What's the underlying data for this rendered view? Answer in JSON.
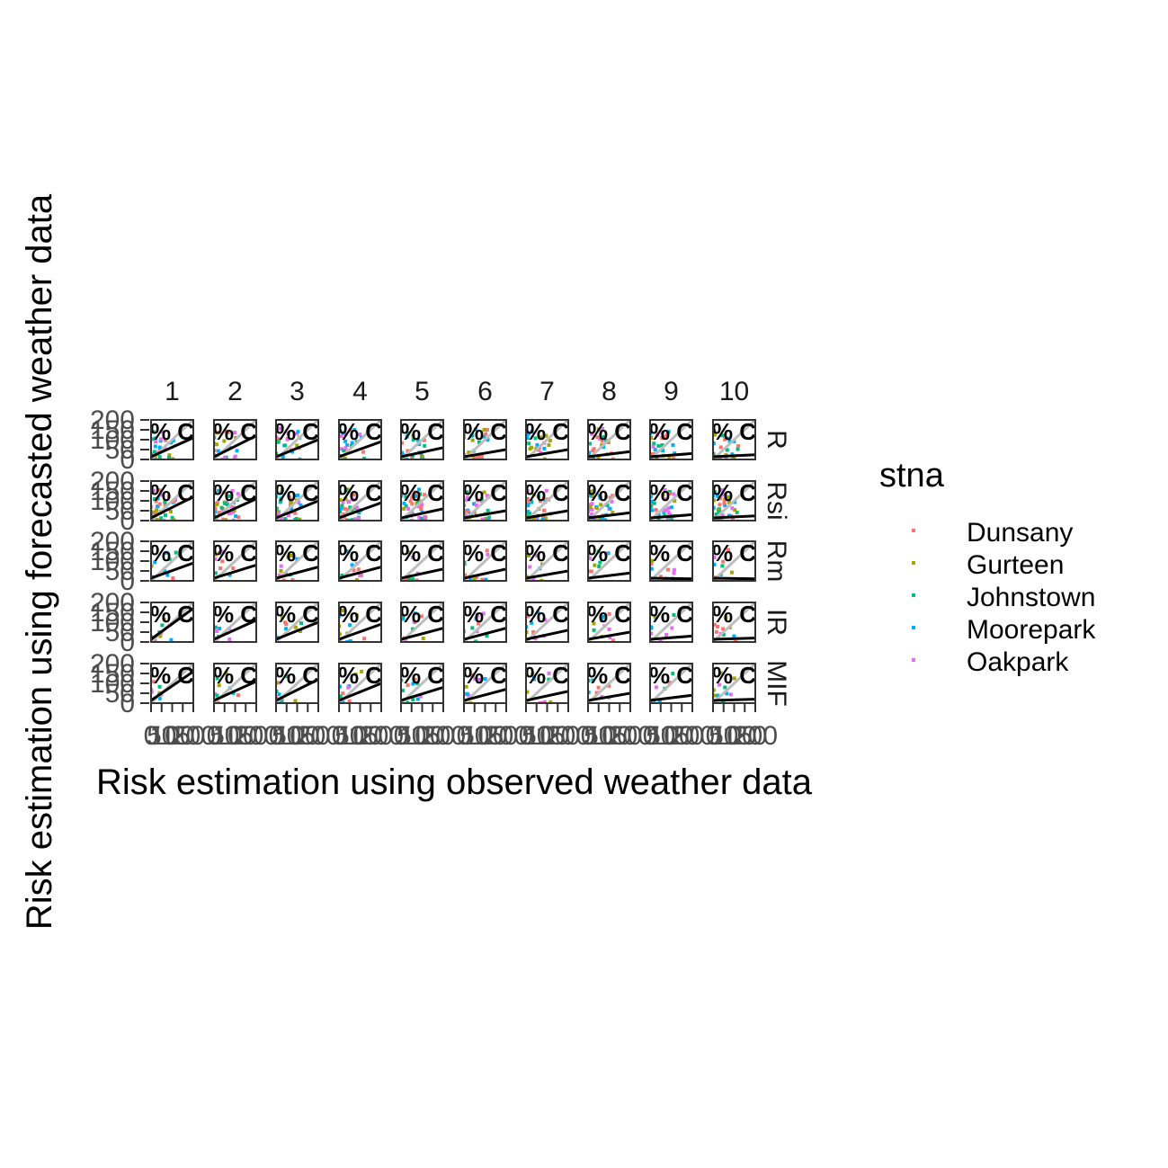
{
  "chart_data": {
    "type": "scatter",
    "xlabel": "Risk estimation using observed weather data",
    "ylabel": "Risk estimation using forecasted weather data",
    "facet_columns": [
      "1",
      "2",
      "3",
      "4",
      "5",
      "6",
      "7",
      "8",
      "9",
      "10"
    ],
    "facet_rows": [
      "R",
      "Rsi",
      "Rm",
      "IR",
      "MIF"
    ],
    "y_ticks": [
      "0",
      "50",
      "100",
      "150",
      "200"
    ],
    "x_ticks": [
      "0",
      "50",
      "100",
      "150",
      "200"
    ],
    "xlim": [
      0,
      200
    ],
    "ylim": [
      0,
      200
    ],
    "panel_label": "% C",
    "identity_line": true,
    "regression_line": true,
    "legend": {
      "title": "stna",
      "position": "right",
      "entries": [
        {
          "name": "Dunsany",
          "color": "#F8766D"
        },
        {
          "name": "Gurteen",
          "color": "#A3A500"
        },
        {
          "name": "Johnstown",
          "color": "#00BF7D"
        },
        {
          "name": "Moorepark",
          "color": "#00B0F6"
        },
        {
          "name": "Oakpark",
          "color": "#E76BF3"
        }
      ]
    },
    "regression_slopes": [
      [
        0.55,
        0.6,
        0.5,
        0.45,
        0.3,
        0.25,
        0.25,
        0.2,
        0.15,
        0.12
      ],
      [
        0.6,
        0.55,
        0.5,
        0.45,
        0.3,
        0.25,
        0.25,
        0.2,
        0.15,
        0.12
      ],
      [
        0.45,
        0.4,
        0.35,
        0.35,
        0.3,
        0.3,
        0.25,
        0.2,
        0.05,
        0.05
      ],
      [
        0.85,
        0.55,
        0.5,
        0.45,
        0.35,
        0.35,
        0.3,
        0.25,
        0.15,
        0.1
      ],
      [
        0.8,
        0.55,
        0.6,
        0.5,
        0.4,
        0.35,
        0.3,
        0.25,
        0.2,
        0.1
      ]
    ]
  }
}
